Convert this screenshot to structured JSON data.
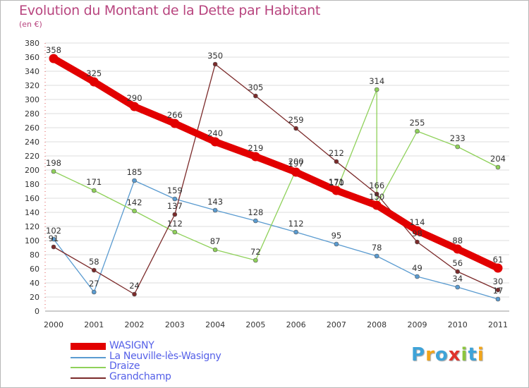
{
  "title": "Evolution du Montant de la Dette par Habitant",
  "subtitle": "(en €)",
  "logo": {
    "letters": [
      {
        "ch": "P",
        "color": "#3fa3d8"
      },
      {
        "ch": "r",
        "color": "#f2a51a"
      },
      {
        "ch": "o",
        "color": "#3fa3d8"
      },
      {
        "ch": "x",
        "color": "#e0332c"
      },
      {
        "ch": "i",
        "color": "#8cc63f"
      },
      {
        "ch": "t",
        "color": "#3fa3d8"
      },
      {
        "ch": "i",
        "color": "#f2a51a"
      }
    ]
  },
  "chart_data": {
    "type": "line",
    "title": "Evolution du Montant de la Dette par Habitant",
    "ylabel": "(en €)",
    "xlabel": "",
    "x": [
      "2000",
      "2001",
      "2002",
      "2003",
      "2004",
      "2005",
      "2006",
      "2007",
      "2008",
      "2009",
      "2010",
      "2011"
    ],
    "ylim": [
      0,
      380
    ],
    "yticks": [
      0,
      20,
      40,
      60,
      80,
      100,
      120,
      140,
      160,
      180,
      200,
      220,
      240,
      260,
      280,
      300,
      320,
      340,
      360,
      380
    ],
    "grid": "horizontal",
    "legend_position": "bottom-left",
    "series": [
      {
        "name": "WASIGNY",
        "color": "#e20000",
        "emphasis": true,
        "values": [
          358,
          325,
          290,
          266,
          240,
          219,
          197,
          171,
          150,
          114,
          88,
          61
        ],
        "labels": [
          "358",
          "325",
          "290",
          "266",
          "240",
          "219",
          "197",
          "171",
          "150",
          "114",
          "88",
          "61"
        ]
      },
      {
        "name": "La Neuville-lès-Wasigny",
        "color": "#5a9bd0",
        "values": [
          102,
          27,
          185,
          159,
          143,
          128,
          112,
          95,
          78,
          49,
          34,
          17
        ],
        "labels": [
          "102",
          "27",
          "185",
          "159",
          "143",
          "128",
          "112",
          "95",
          "78",
          "49",
          "34",
          "17"
        ]
      },
      {
        "name": "Draize",
        "color": "#8fd15a",
        "values": [
          198,
          171,
          142,
          112,
          87,
          72,
          200,
          170,
          150,
          255,
          233,
          204
        ],
        "labels": [
          "198",
          "171",
          "142",
          "112",
          "87",
          "72",
          "200",
          "170",
          "",
          "255",
          "233",
          "204"
        ],
        "extra_points": [
          {
            "x": "2008",
            "value": 314,
            "label": "314"
          }
        ],
        "note": "series jumps to 314 around 2008"
      },
      {
        "name": "Grandchamp",
        "color": "#7b2a2a",
        "values": [
          91,
          58,
          24,
          137,
          350,
          305,
          259,
          212,
          166,
          98,
          56,
          30
        ],
        "labels": [
          "91",
          "58",
          "24",
          "137",
          "350",
          "305",
          "259",
          "212",
          "166",
          "98",
          "56",
          "30"
        ]
      }
    ]
  }
}
